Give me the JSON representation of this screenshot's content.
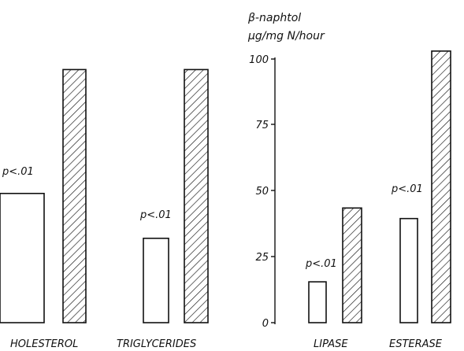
{
  "chart_data": [
    {
      "type": "bar",
      "categories": [
        "HOLESTEROL",
        "TRIGLYCERIDES"
      ],
      "series": [
        {
          "fill": "open",
          "values": [
            49,
            32
          ]
        },
        {
          "fill": "hatched",
          "values": [
            96,
            96
          ]
        }
      ],
      "annotations": [
        "p<.01",
        "p<.01"
      ],
      "y_axis_shown": false,
      "grid": false
    },
    {
      "type": "bar",
      "ylabel": [
        "β-naphtol",
        "µg/mg N/hour"
      ],
      "yticks": [
        "0",
        "25",
        "50",
        "75",
        "100"
      ],
      "ylim": [
        0,
        100
      ],
      "categories": [
        "LIPASE",
        "ESTERASE"
      ],
      "series": [
        {
          "fill": "open",
          "values": [
            15.5,
            39.5
          ]
        },
        {
          "fill": "hatched",
          "values": [
            43.5,
            103
          ]
        }
      ],
      "annotations": [
        "p<.01",
        "p<.01"
      ],
      "grid": false
    }
  ],
  "colors": {
    "ink": "#111111",
    "background": "#ffffff"
  }
}
